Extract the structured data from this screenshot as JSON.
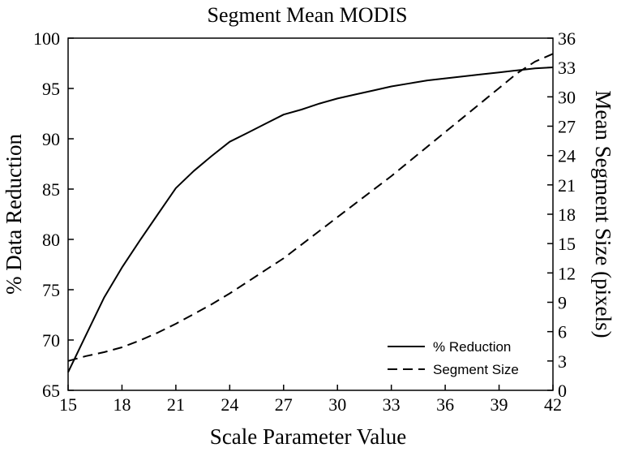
{
  "chart_data": {
    "type": "line",
    "title": "Segment Mean MODIS",
    "xlabel": "Scale Parameter Value",
    "ylabel": "% Data Reduction",
    "y2label": "Mean Segment Size (pixels)",
    "xlim": [
      15,
      42
    ],
    "ylim": [
      65,
      100
    ],
    "y2lim": [
      0,
      36
    ],
    "x_ticks": [
      15,
      18,
      21,
      24,
      27,
      30,
      33,
      36,
      39,
      42
    ],
    "y_ticks": [
      65,
      70,
      75,
      80,
      85,
      90,
      95,
      100
    ],
    "y2_ticks": [
      0,
      3,
      6,
      9,
      12,
      15,
      18,
      21,
      24,
      27,
      30,
      33,
      36
    ],
    "grid": false,
    "legend_position": "bottom-right",
    "series": [
      {
        "name": "% Reduction",
        "axis": "left",
        "style": "solid",
        "x": [
          15,
          16,
          17,
          18,
          19,
          20,
          21,
          22,
          23,
          24,
          25,
          26,
          27,
          28,
          29,
          30,
          31,
          32,
          33,
          34,
          35,
          36,
          37,
          38,
          39,
          40,
          41,
          42
        ],
        "values": [
          66.8,
          70.5,
          74.2,
          77.2,
          79.9,
          82.5,
          85.1,
          86.8,
          88.3,
          89.7,
          90.6,
          91.5,
          92.4,
          92.9,
          93.5,
          94.0,
          94.4,
          94.8,
          95.2,
          95.5,
          95.8,
          96.0,
          96.2,
          96.4,
          96.6,
          96.8,
          97.0,
          97.1
        ]
      },
      {
        "name": "Segment Size",
        "axis": "right",
        "style": "dashed",
        "x": [
          15,
          16,
          17,
          18,
          19,
          20,
          21,
          22,
          23,
          24,
          25,
          26,
          27,
          28,
          29,
          30,
          31,
          32,
          33,
          34,
          35,
          36,
          37,
          38,
          39,
          40,
          41,
          42
        ],
        "values": [
          3.0,
          3.5,
          3.9,
          4.4,
          5.1,
          5.9,
          6.8,
          7.8,
          8.8,
          9.9,
          11.1,
          12.3,
          13.5,
          14.9,
          16.3,
          17.7,
          19.1,
          20.5,
          21.9,
          23.4,
          24.9,
          26.4,
          27.9,
          29.4,
          30.9,
          32.4,
          33.6,
          34.4
        ]
      }
    ]
  }
}
